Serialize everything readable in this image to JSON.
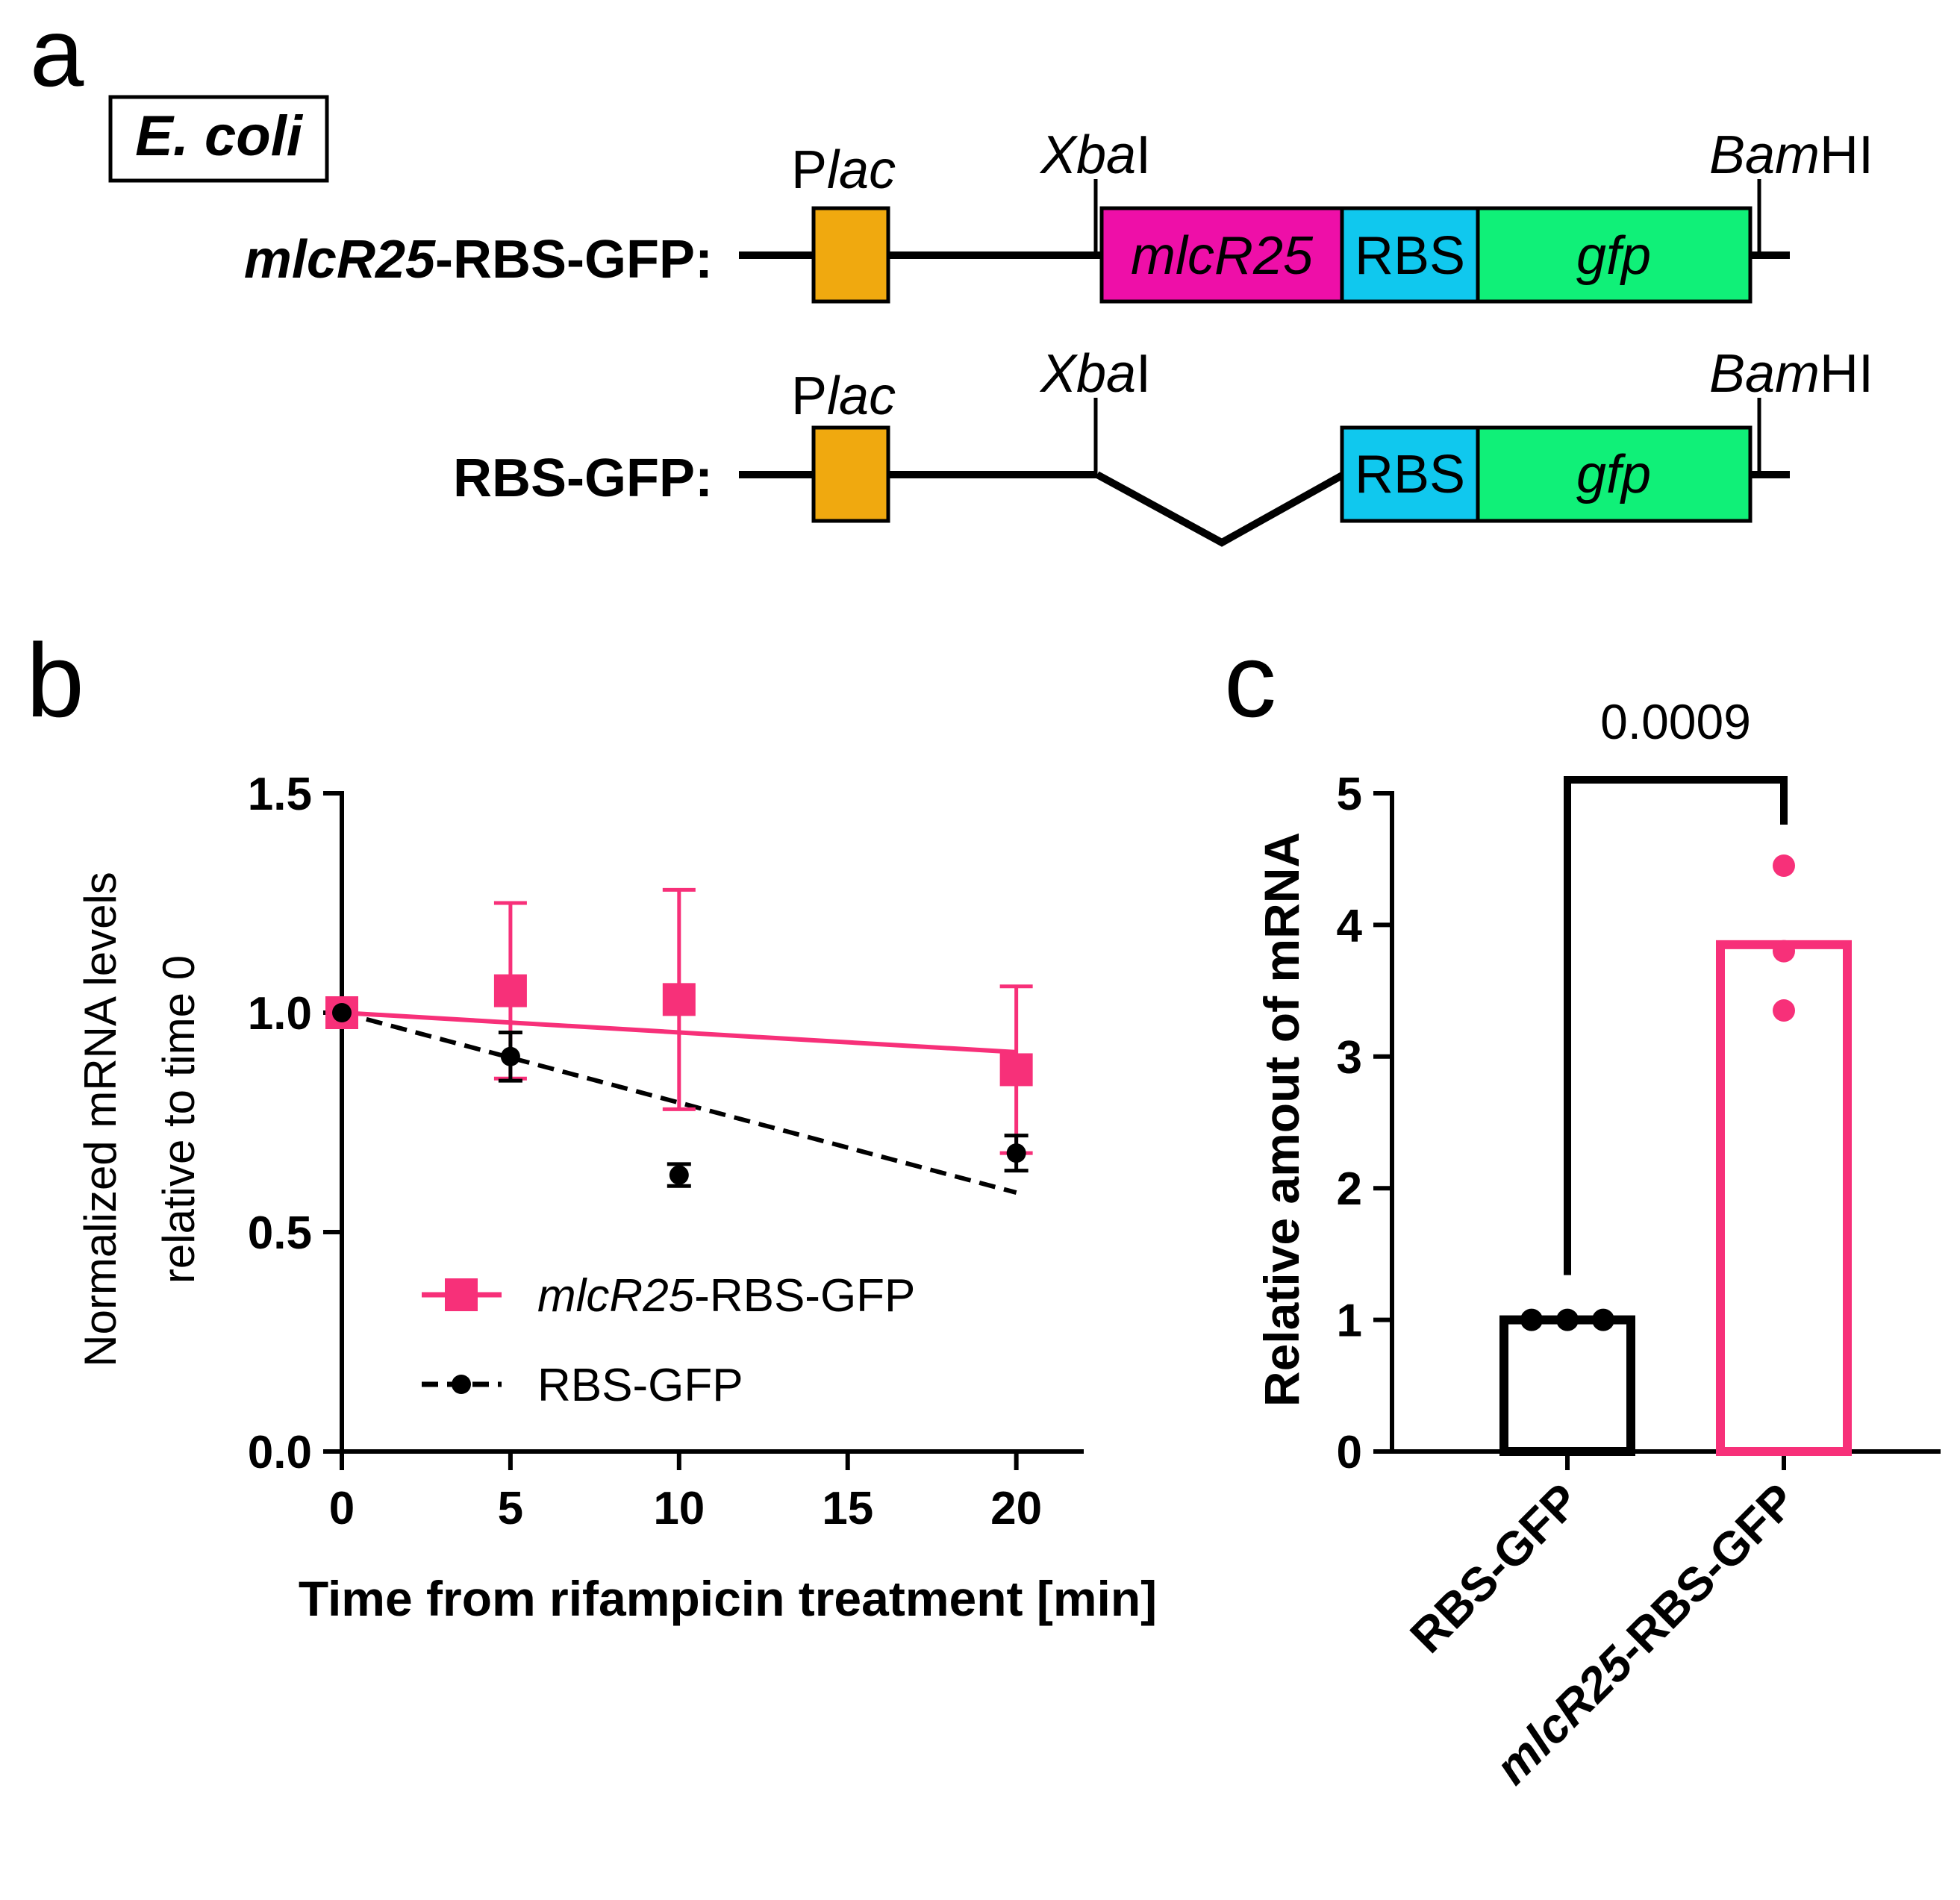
{
  "panel_a": {
    "letter": "a",
    "organism": "E. coli",
    "construct1": {
      "name_italic": "mlcR25",
      "name_rest": "-RBS-GFP:"
    },
    "construct2": {
      "name": "RBS-GFP:"
    },
    "promoter": {
      "p": "P",
      "sub": "lac"
    },
    "xbai": {
      "italic": "Xba",
      "rest": "I"
    },
    "bamhi": {
      "italic": "Bam",
      "rest": "HI"
    },
    "box_mlcr25": "mlcR25",
    "box_rbs": "RBS",
    "box_gfp": "gfp",
    "colors": {
      "promoter": "#F0A90F",
      "mlcr25": "#EE0FA8",
      "rbs": "#10C8EE",
      "gfp": "#10F078"
    }
  },
  "chart_data": [
    {
      "type": "line",
      "panel": "b",
      "xlabel": "Time from rifampicin treatment [min]",
      "ylabel_line1": "Normalized mRNA levels",
      "ylabel_line2": "relative to time 0",
      "xlim": [
        0,
        22
      ],
      "ylim": [
        0,
        1.5
      ],
      "xticks": [
        0,
        5,
        10,
        15,
        20
      ],
      "xtick_labels": [
        "0",
        "5",
        "10",
        "15",
        "20"
      ],
      "yticks": [
        0,
        0.5,
        1.0,
        1.5
      ],
      "ytick_labels": [
        "0.0",
        "0.5",
        "1.0",
        "1.5"
      ],
      "series": [
        {
          "name_italic": "mlcR25",
          "name_rest": "-RBS-GFP",
          "color": "#F73079",
          "marker": "square",
          "x": [
            0,
            5,
            10,
            20
          ],
          "y": [
            1.0,
            1.05,
            1.03,
            0.87
          ],
          "err": [
            0,
            0.2,
            0.25,
            0.19
          ],
          "fit": {
            "x": [
              0,
              20
            ],
            "y": [
              1.0,
              0.91
            ],
            "style": "solid"
          }
        },
        {
          "name": "RBS-GFP",
          "color": "#000000",
          "marker": "circle",
          "x": [
            0,
            5,
            10,
            20
          ],
          "y": [
            1.0,
            0.9,
            0.63,
            0.68
          ],
          "err": [
            0,
            0.055,
            0.025,
            0.04
          ],
          "fit": {
            "x": [
              0,
              20
            ],
            "y": [
              1.0,
              0.59
            ],
            "style": "dashed"
          }
        }
      ]
    },
    {
      "type": "bar",
      "panel": "c",
      "ylabel": "Relative amout of mRNA",
      "ylim": [
        0,
        5
      ],
      "yticks": [
        0,
        1,
        2,
        3,
        4,
        5
      ],
      "ytick_labels": [
        "0",
        "1",
        "2",
        "3",
        "4",
        "5"
      ],
      "categories": [
        "RBS-GFP",
        "mlcR25-RBS-GFP"
      ],
      "category_parts": [
        {
          "italic": "",
          "rest": "RBS-GFP"
        },
        {
          "italic": "mlcR25",
          "rest": "-RBS-GFP"
        }
      ],
      "values": [
        1.0,
        3.85
      ],
      "points": [
        [
          1.0,
          1.0,
          1.0
        ],
        [
          4.45,
          3.8,
          3.35
        ]
      ],
      "colors": [
        "#000000",
        "#F73079"
      ],
      "p_value": "0.0009"
    }
  ]
}
